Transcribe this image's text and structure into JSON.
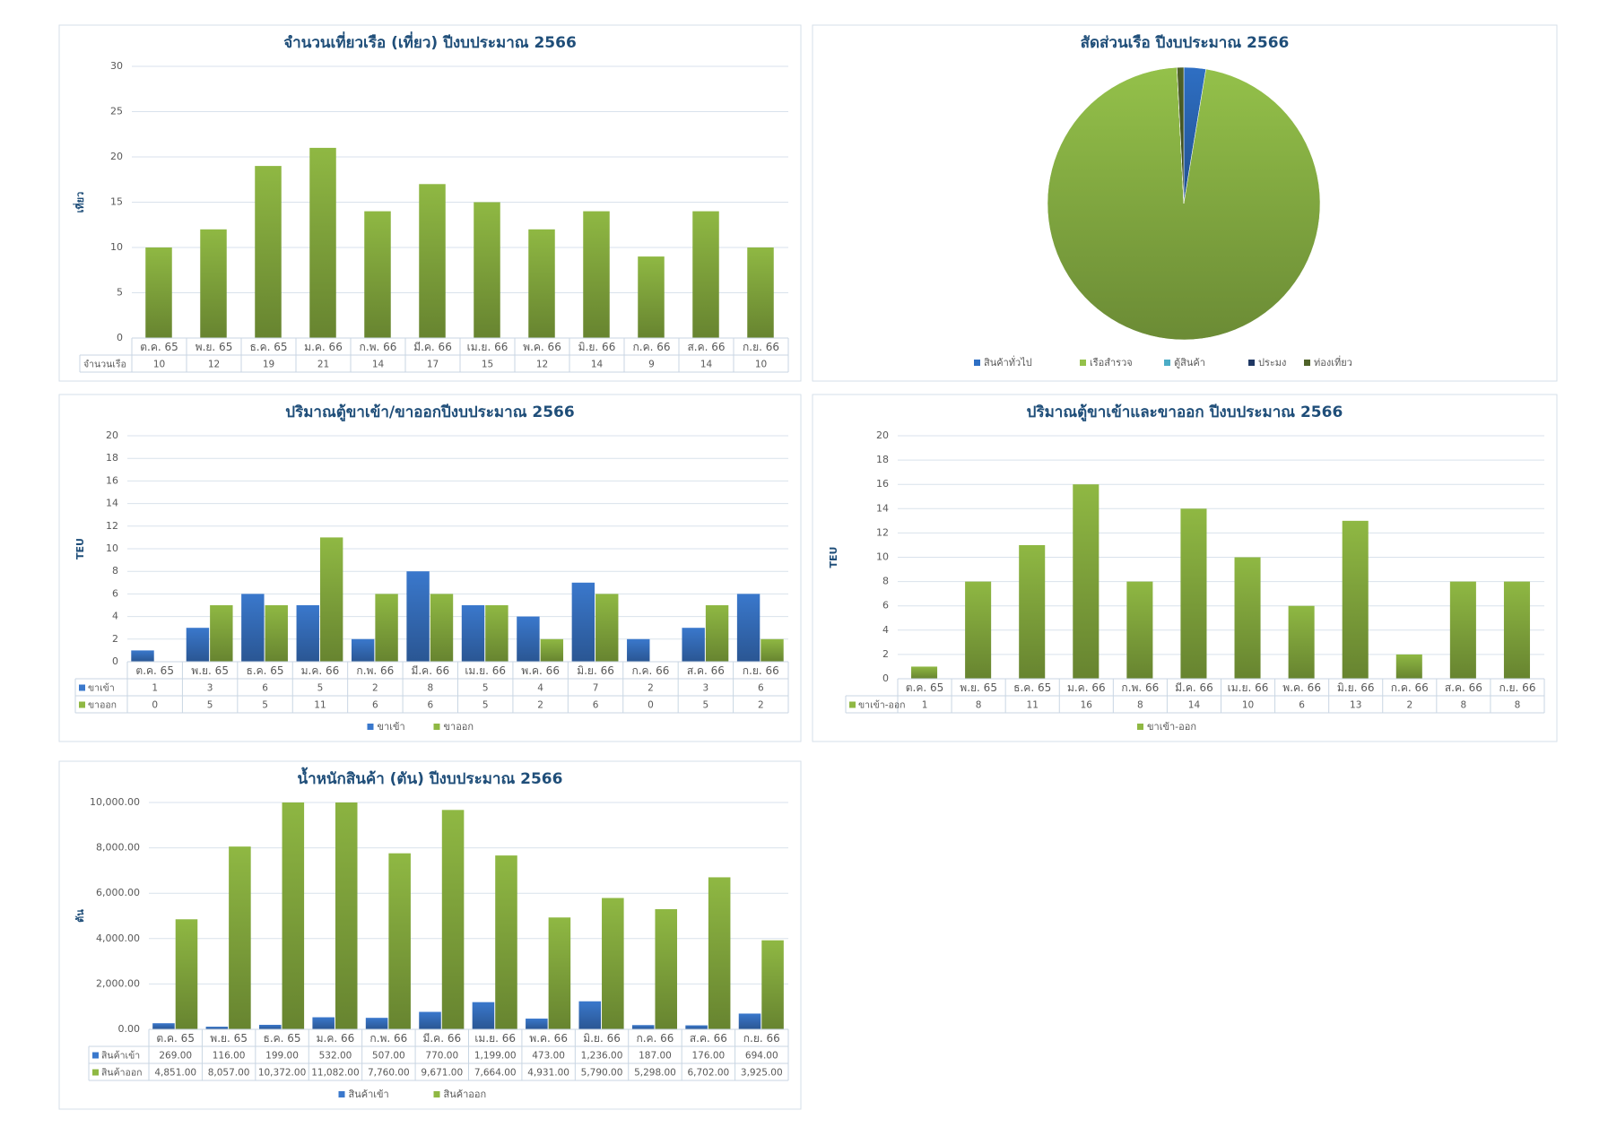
{
  "chart_data": [
    {
      "type": "bar",
      "title": "จำนวนเที่ยวเรือ (เที่ยว) ปีงบประมาณ 2566",
      "y_label": "เที่ยว",
      "categories": [
        "ต.ค. 65",
        "พ.ย. 65",
        "ธ.ค. 65",
        "ม.ค. 66",
        "ก.พ. 66",
        "มี.ค. 66",
        "เม.ย. 66",
        "พ.ค. 66",
        "มิ.ย. 66",
        "ก.ค. 66",
        "ส.ค. 66",
        "ก.ย. 66"
      ],
      "series": [
        {
          "name": "จำนวนเรือ",
          "color": "#8fb843",
          "values": [
            10,
            12,
            19,
            21,
            14,
            17,
            15,
            12,
            14,
            9,
            14,
            10
          ]
        }
      ],
      "ylim": [
        0,
        30
      ],
      "yticks": [
        0,
        5,
        10,
        15,
        20,
        25,
        30
      ],
      "grid": true,
      "legend": false
    },
    {
      "type": "pie",
      "title": "สัดส่วนเรือ ปีงบประมาณ 2566",
      "categories": [
        "สินค้าทั่วไป",
        "เรือสำรวจ",
        "ตู้สินค้า",
        "ประมง",
        "ท่องเที่ยว"
      ],
      "values": [
        2.6,
        96.6,
        0,
        0,
        0.8
      ],
      "colors": [
        "#2e6fc4",
        "#94c14a",
        "#4bacc6",
        "#1f3864",
        "#4f6228"
      ],
      "legend": "bottom"
    },
    {
      "type": "bar",
      "title": "ปริมาณตู้ขาเข้า/ขาออกปีงบประมาณ 2566",
      "y_label": "TEU",
      "categories": [
        "ต.ค. 65",
        "พ.ย. 65",
        "ธ.ค. 65",
        "ม.ค. 66",
        "ก.พ. 66",
        "มี.ค. 66",
        "เม.ย. 66",
        "พ.ค. 66",
        "มิ.ย. 66",
        "ก.ค. 66",
        "ส.ค. 66",
        "ก.ย. 66"
      ],
      "series": [
        {
          "name": "ขาเข้า",
          "color": "#3a78cc",
          "values": [
            1,
            3,
            6,
            5,
            2,
            8,
            5,
            4,
            7,
            2,
            3,
            6
          ]
        },
        {
          "name": "ขาออก",
          "color": "#8fb843",
          "values": [
            0,
            5,
            5,
            11,
            6,
            6,
            5,
            2,
            6,
            0,
            5,
            2
          ]
        }
      ],
      "ylim": [
        0,
        20
      ],
      "yticks": [
        0,
        2,
        4,
        6,
        8,
        10,
        12,
        14,
        16,
        18,
        20
      ],
      "grid": true,
      "legend": "bottom"
    },
    {
      "type": "bar",
      "title": "ปริมาณตู้ขาเข้าและขาออก ปีงบประมาณ 2566",
      "y_label": "TEU",
      "categories": [
        "ต.ค. 65",
        "พ.ย. 65",
        "ธ.ค. 65",
        "ม.ค. 66",
        "ก.พ. 66",
        "มี.ค. 66",
        "เม.ย. 66",
        "พ.ค. 66",
        "มิ.ย. 66",
        "ก.ค. 66",
        "ส.ค. 66",
        "ก.ย. 66"
      ],
      "series": [
        {
          "name": "ขาเข้า-ออก",
          "color": "#8fb843",
          "values": [
            1,
            8,
            11,
            16,
            8,
            14,
            10,
            6,
            13,
            2,
            8,
            8
          ]
        }
      ],
      "ylim": [
        0,
        20
      ],
      "yticks": [
        0,
        2,
        4,
        6,
        8,
        10,
        12,
        14,
        16,
        18,
        20
      ],
      "grid": true,
      "legend": "bottom"
    },
    {
      "type": "bar",
      "title": "น้ำหนักสินค้า (ตัน) ปีงบประมาณ 2566",
      "y_label": "ตัน",
      "categories": [
        "ต.ค. 65",
        "พ.ย. 65",
        "ธ.ค. 65",
        "ม.ค. 66",
        "ก.พ. 66",
        "มี.ค. 66",
        "เม.ย. 66",
        "พ.ค. 66",
        "มิ.ย. 66",
        "ก.ค. 66",
        "ส.ค. 66",
        "ก.ย. 66"
      ],
      "series": [
        {
          "name": "สินค้าเข้า",
          "color": "#3a78cc",
          "values": [
            269,
            116,
            199,
            532,
            507,
            770,
            1199,
            473,
            1236,
            187,
            176,
            694
          ],
          "value_labels": [
            "269.00",
            "116.00",
            "199.00",
            "532.00",
            "507.00",
            "770.00",
            "1,199.00",
            "473.00",
            "1,236.00",
            "187.00",
            "176.00",
            "694.00"
          ]
        },
        {
          "name": "สินค้าออก",
          "color": "#8fb843",
          "values": [
            4851,
            8057,
            10372,
            11082,
            7760,
            9671,
            7664,
            4931,
            5790,
            5298,
            6702,
            3925
          ],
          "value_labels": [
            "4,851.00",
            "8,057.00",
            "10,372.00",
            "11,082.00",
            "7,760.00",
            "9,671.00",
            "7,664.00",
            "4,931.00",
            "5,790.00",
            "5,298.00",
            "6,702.00",
            "3,925.00"
          ]
        }
      ],
      "ylim": [
        0,
        10000
      ],
      "yticks": [
        {
          "value": 0,
          "label": "0.00"
        },
        {
          "value": 2000,
          "label": "2,000.00"
        },
        {
          "value": 4000,
          "label": "4,000.00"
        },
        {
          "value": 6000,
          "label": "6,000.00"
        },
        {
          "value": 8000,
          "label": "8,000.00"
        },
        {
          "value": 10000,
          "label": "10,000.00"
        }
      ],
      "grid": true,
      "legend": "bottom"
    }
  ]
}
